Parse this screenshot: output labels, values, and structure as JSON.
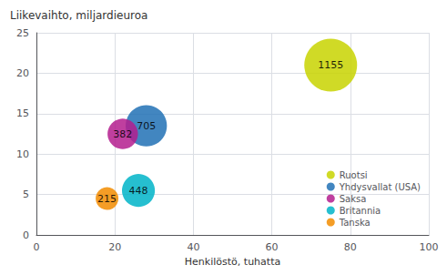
{
  "chart_data": {
    "type": "scatter",
    "title": "Liikevaihto, miljardieuroa",
    "xlabel": "Henkilöstö, tuhatta",
    "xlim": [
      0,
      100
    ],
    "ylim": [
      0,
      25
    ],
    "xticks": [
      0,
      20,
      40,
      60,
      80,
      100
    ],
    "yticks": [
      0,
      5,
      10,
      15,
      20,
      25
    ],
    "grid": true,
    "legend": "lower right",
    "data_labels": true,
    "marker": "circle",
    "series": [
      {
        "name": "Ruotsi",
        "color": "#c8d400",
        "x": [
          75
        ],
        "y": [
          21
        ],
        "sizes": [
          1155
        ]
      },
      {
        "name": "Yhdysvallat (USA)",
        "color": "#2171b5",
        "x": [
          28
        ],
        "y": [
          13.5
        ],
        "sizes": [
          705
        ]
      },
      {
        "name": "Saksa",
        "color": "#b41d8e",
        "x": [
          22
        ],
        "y": [
          12.5
        ],
        "sizes": [
          382
        ]
      },
      {
        "name": "Britannia",
        "color": "#00b4c8",
        "x": [
          26
        ],
        "y": [
          5.5
        ],
        "sizes": [
          448
        ]
      },
      {
        "name": "Tanska",
        "color": "#f28c00",
        "x": [
          18
        ],
        "y": [
          4.5
        ],
        "sizes": [
          215
        ]
      }
    ]
  }
}
